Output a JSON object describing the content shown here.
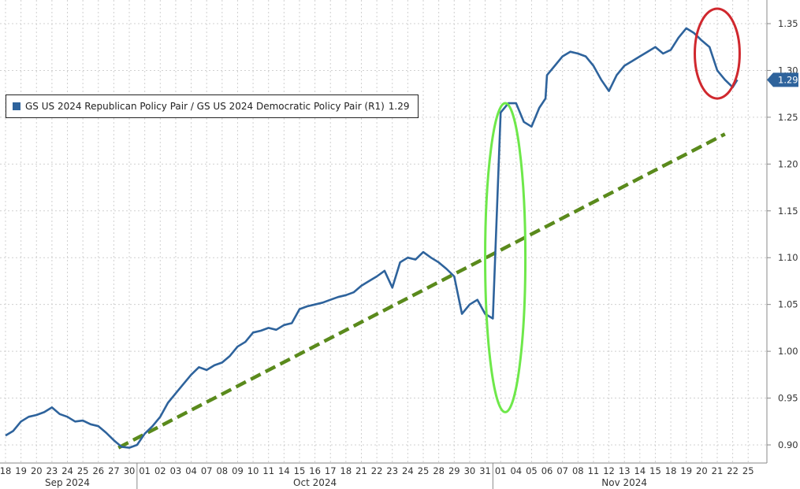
{
  "colors": {
    "series": "#2e639c",
    "trend": "#5a8a1c",
    "highlight_green": "#6ee84a",
    "highlight_red": "#d0282e",
    "grid": "#d0d0d0",
    "axis": "#8a8a8a"
  },
  "legend": {
    "label": "GS US 2024 Republican Policy Pair / GS US 2024 Democratic Policy Pair (R1)",
    "value": "1.29"
  },
  "last_value_badge": "1.29",
  "chart_data": {
    "type": "line",
    "title": "",
    "xlabel": "",
    "ylabel": "",
    "y_axis_side": "right",
    "ylim": [
      0.88,
      1.37
    ],
    "y_ticks": [
      "0.90",
      "0.95",
      "1.00",
      "1.05",
      "1.10",
      "1.15",
      "1.20",
      "1.25",
      "1.30",
      "1.35"
    ],
    "grid": "dotted",
    "legend_position": "top-left",
    "x_tick_labels": [
      "18",
      "19",
      "20",
      "23",
      "24",
      "25",
      "26",
      "27",
      "30",
      "01",
      "02",
      "03",
      "04",
      "07",
      "08",
      "09",
      "10",
      "11",
      "14",
      "15",
      "16",
      "17",
      "18",
      "21",
      "22",
      "23",
      "24",
      "25",
      "28",
      "29",
      "30",
      "31",
      "01",
      "04",
      "05",
      "06",
      "07",
      "08",
      "11",
      "12",
      "13",
      "14",
      "15",
      "18",
      "19",
      "20",
      "21",
      "22",
      "25"
    ],
    "month_labels": [
      "Sep 2024",
      "Oct 2024",
      "Nov 2024"
    ],
    "series": [
      {
        "name": "GS US 2024 Republican Policy Pair / GS US 2024 Democratic Policy Pair (R1)",
        "x": [
          0,
          0.5,
          1,
          1.5,
          2,
          2.5,
          3,
          3.5,
          4,
          4.5,
          5,
          5.5,
          6,
          6.5,
          7,
          7.5,
          8,
          8.5,
          9,
          9.5,
          10,
          10.5,
          11,
          11.5,
          12,
          12.5,
          13,
          13.5,
          14,
          14.5,
          15,
          15.5,
          16,
          16.5,
          17,
          17.5,
          18,
          18.5,
          19,
          19.5,
          20,
          20.5,
          21,
          21.5,
          22,
          22.5,
          23,
          23.5,
          24,
          24.5,
          25,
          25.5,
          26,
          26.5,
          27,
          27.5,
          28,
          28.5,
          29,
          29.5,
          30,
          30.5,
          31,
          31.5,
          32,
          32.5,
          33,
          33.5,
          34,
          34.5,
          34.9,
          35,
          35.5,
          36,
          36.5,
          37,
          37.5,
          38,
          38.5,
          39,
          39.5,
          40,
          40.5,
          41,
          41.5,
          42,
          42.5,
          43,
          43.5,
          44,
          44.5,
          45,
          45.5,
          46,
          46.5,
          47,
          47.3
        ],
        "y": [
          0.91,
          0.915,
          0.925,
          0.93,
          0.932,
          0.935,
          0.94,
          0.933,
          0.93,
          0.925,
          0.926,
          0.922,
          0.92,
          0.913,
          0.905,
          0.898,
          0.897,
          0.9,
          0.912,
          0.92,
          0.93,
          0.945,
          0.955,
          0.965,
          0.975,
          0.983,
          0.98,
          0.985,
          0.988,
          0.995,
          1.005,
          1.01,
          1.02,
          1.022,
          1.025,
          1.023,
          1.028,
          1.03,
          1.045,
          1.048,
          1.05,
          1.052,
          1.055,
          1.058,
          1.06,
          1.063,
          1.07,
          1.075,
          1.08,
          1.086,
          1.068,
          1.095,
          1.1,
          1.098,
          1.106,
          1.1,
          1.095,
          1.088,
          1.08,
          1.04,
          1.05,
          1.055,
          1.04,
          1.035,
          1.255,
          1.265,
          1.265,
          1.245,
          1.24,
          1.26,
          1.27,
          1.295,
          1.305,
          1.315,
          1.32,
          1.318,
          1.315,
          1.305,
          1.29,
          1.278,
          1.295,
          1.305,
          1.31,
          1.315,
          1.32,
          1.325,
          1.318,
          1.322,
          1.335,
          1.345,
          1.34,
          1.332,
          1.325,
          1.3,
          1.29,
          1.282,
          1.29
        ]
      }
    ],
    "trendline": {
      "style": "dashed",
      "x": [
        7.3,
        46.5
      ],
      "y": [
        0.897,
        1.232
      ]
    },
    "annotations": [
      {
        "type": "ellipse",
        "color": "#6ee84a",
        "center_x": 32.3,
        "center_y": 1.1,
        "rx": 1.3,
        "ry_data": 0.165
      },
      {
        "type": "ellipse",
        "color": "#d0282e",
        "center_x": 46.0,
        "center_y": 1.318,
        "rx": 1.45,
        "ry_data": 0.048
      }
    ]
  }
}
